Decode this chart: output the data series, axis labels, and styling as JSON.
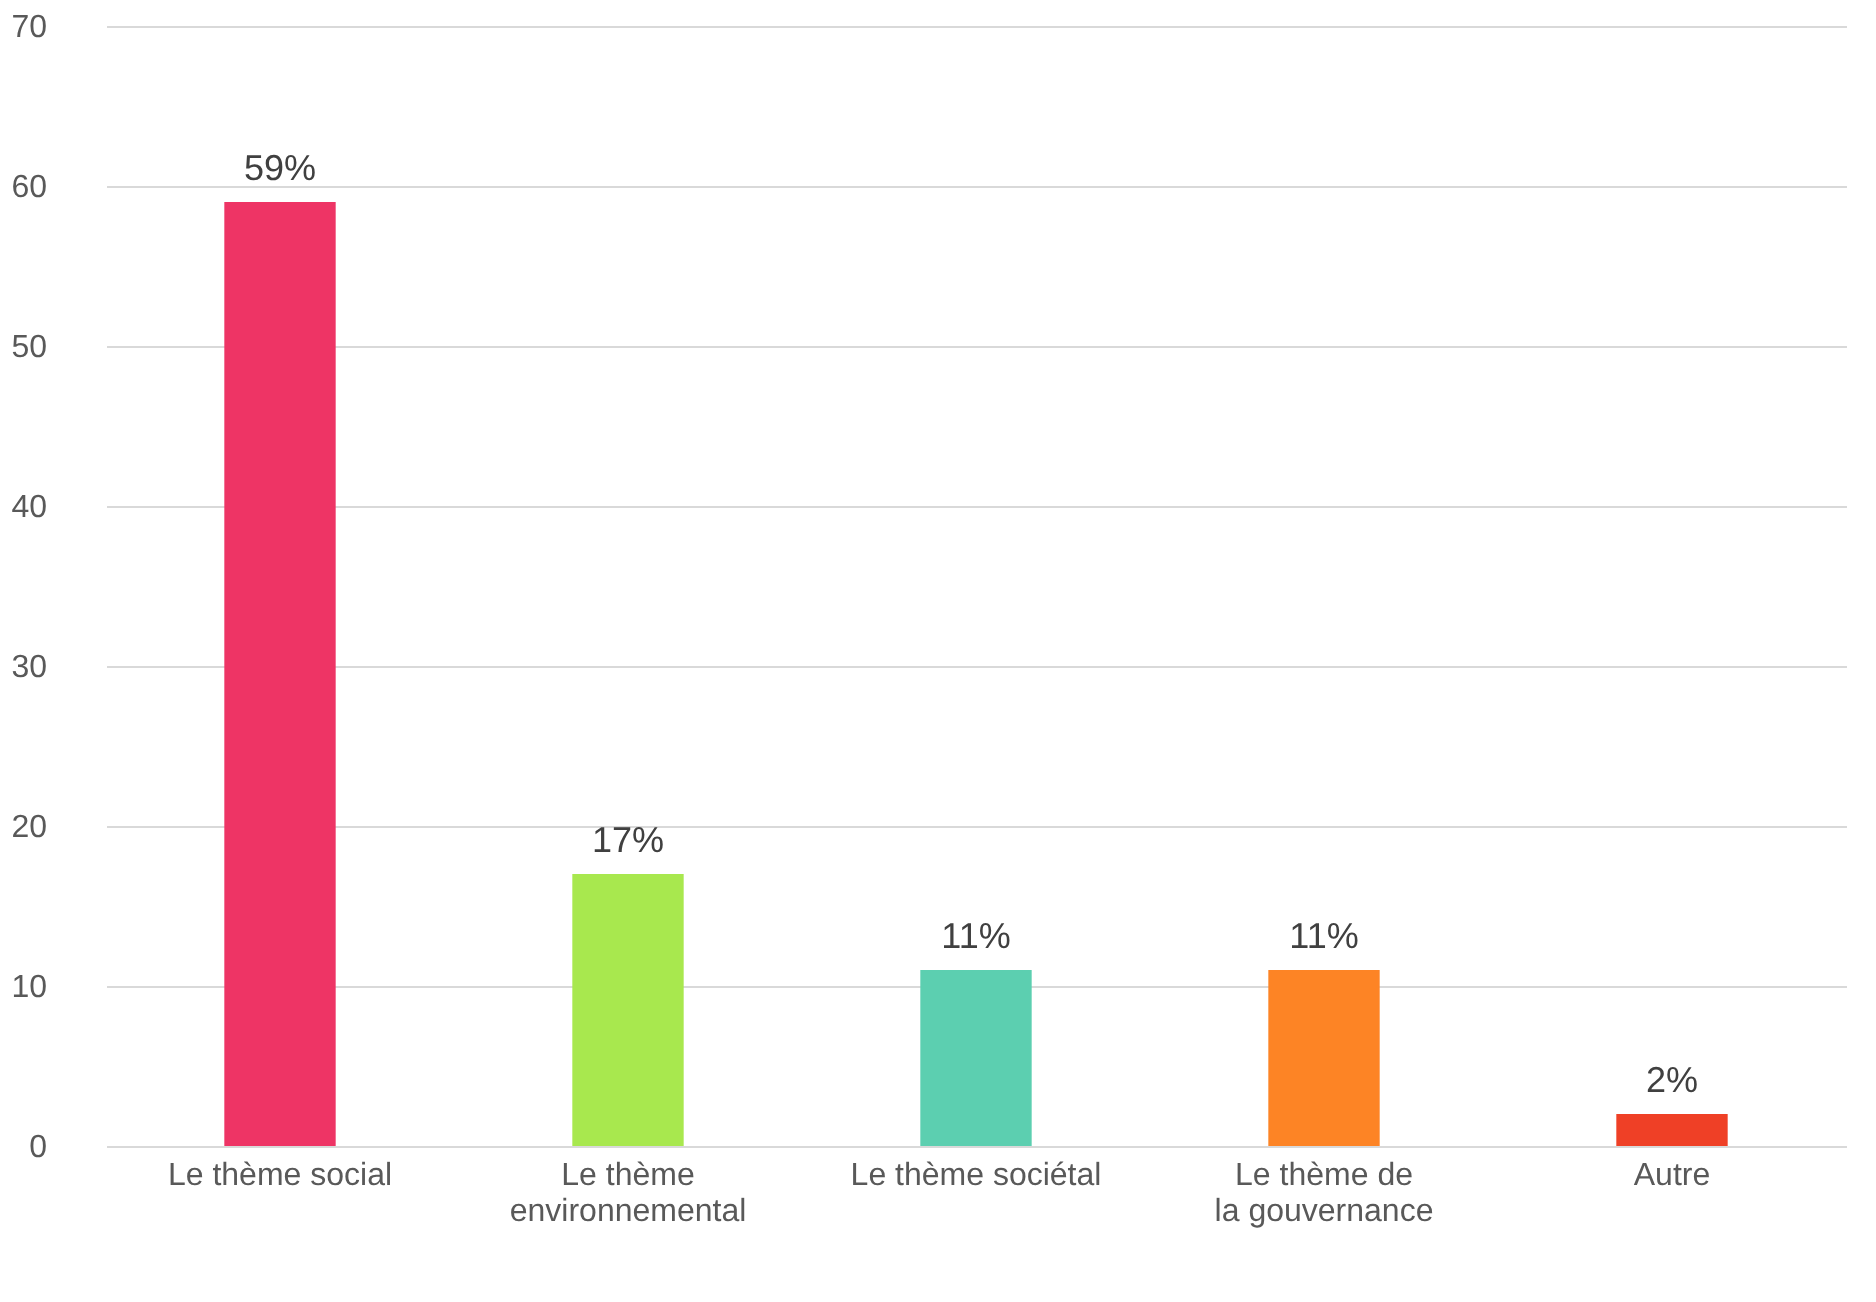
{
  "chart_data": {
    "type": "bar",
    "categories": [
      "Le thème social",
      "Le thème environnemental",
      "Le thème sociétal",
      "Le thème de la gouvernance",
      "Autre"
    ],
    "values": [
      59,
      17,
      11,
      11,
      2
    ],
    "colors": [
      "#ee3465",
      "#a8e84e",
      "#5ccfb0",
      "#fd8425",
      "#ef4026"
    ],
    "value_labels": [
      "59%",
      "17%",
      "11%",
      "11%",
      "2%"
    ],
    "ylim": [
      0,
      70
    ],
    "yticks": [
      0,
      10,
      20,
      30,
      40,
      50,
      60,
      70
    ],
    "grid": "y"
  }
}
